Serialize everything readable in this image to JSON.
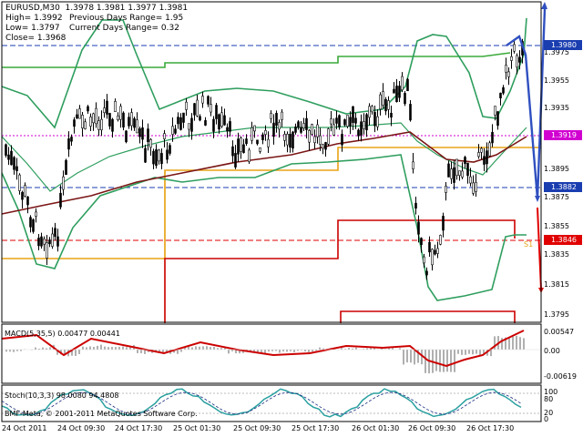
{
  "header": {
    "symbol_line": "EURUSD,M30  1.3978 1.3981 1.3977 1.3981",
    "high_line": "High= 1.3992",
    "prev_range_line": "Previous Days Range= 1.95",
    "low_line": "Low= 1.3797",
    "curr_range_line": "Current Days Range= 0.32",
    "close_line": "Close= 1.3968"
  },
  "price_axis": [
    "1.3975",
    "1.3955",
    "1.3935",
    "1.3915",
    "1.3895",
    "1.3875",
    "1.3855",
    "1.3835",
    "1.3815",
    "1.3795"
  ],
  "badges": [
    {
      "label": "1.3980",
      "color": "#1a3db0"
    },
    {
      "label": "1.3919",
      "color": "#d100d1"
    },
    {
      "label": "1.3882",
      "color": "#1a3db0"
    },
    {
      "label": "1.3846",
      "color": "#e00000"
    }
  ],
  "macd": {
    "label": "MACD(5,35,5) 0.00477 0.00441",
    "axis": [
      "0.00547",
      "0.00",
      "-0.00619"
    ]
  },
  "stoch": {
    "label": "Stoch(10,3,3) 98.0080 94.4808",
    "axis": [
      "100",
      "80",
      "20",
      "0"
    ]
  },
  "copyright": "BMF-Meta, © 2001-2011 MetaQuotes Software Corp.",
  "s1_label": "S1",
  "time_axis": [
    "24 Oct 2011",
    "24 Oct 09:30",
    "24 Oct 17:30",
    "25 Oct 01:30",
    "25 Oct 09:30",
    "25 Oct 17:30",
    "26 Oct 01:30",
    "26 Oct 09:30",
    "26 Oct 17:30"
  ],
  "colors": {
    "bb": "#2e9e5e",
    "ma_slow": "#7a1515",
    "pivot": "#e8a317",
    "resist": "#cc0000",
    "forecast": "#3050c0",
    "macd_line": "#cc0000",
    "hist": "#b0b0b0",
    "stoch": "#2ba0a0"
  }
}
